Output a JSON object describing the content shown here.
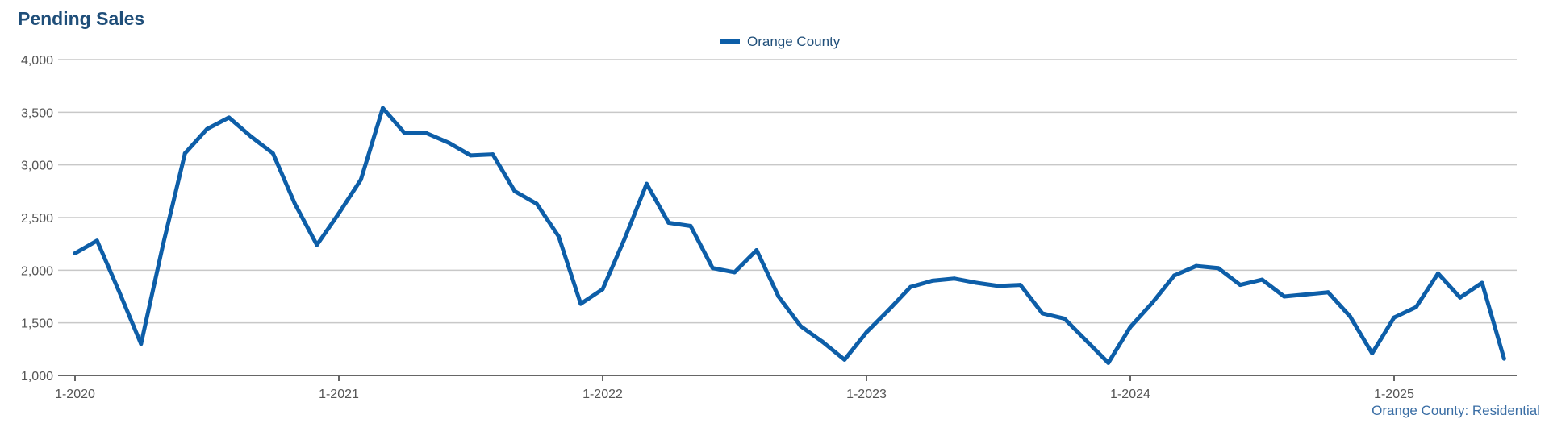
{
  "chart_data": {
    "type": "line",
    "title": "Pending Sales",
    "xlabel": "",
    "ylabel": "",
    "ylim": [
      1000,
      4000
    ],
    "yticks": [
      1000,
      1500,
      2000,
      2500,
      3000,
      3500,
      4000
    ],
    "ytick_labels": [
      "1,000",
      "1,500",
      "2,000",
      "2,500",
      "3,000",
      "3,500",
      "4,000"
    ],
    "xticks": [
      "1-2020",
      "1-2021",
      "1-2022",
      "1-2023",
      "1-2024",
      "1-2025"
    ],
    "grid": true,
    "legend_position": "top-center",
    "x": [
      "2020-01",
      "2020-02",
      "2020-03",
      "2020-04",
      "2020-05",
      "2020-06",
      "2020-07",
      "2020-08",
      "2020-09",
      "2020-10",
      "2020-11",
      "2020-12",
      "2021-01",
      "2021-02",
      "2021-03",
      "2021-04",
      "2021-05",
      "2021-06",
      "2021-07",
      "2021-08",
      "2021-09",
      "2021-10",
      "2021-11",
      "2021-12",
      "2022-01",
      "2022-02",
      "2022-03",
      "2022-04",
      "2022-05",
      "2022-06",
      "2022-07",
      "2022-08",
      "2022-09",
      "2022-10",
      "2022-11",
      "2022-12",
      "2023-01",
      "2023-02",
      "2023-03",
      "2023-04",
      "2023-05",
      "2023-06",
      "2023-07",
      "2023-08",
      "2023-09",
      "2023-10",
      "2023-11",
      "2023-12",
      "2024-01",
      "2024-02",
      "2024-03",
      "2024-04",
      "2024-05",
      "2024-06",
      "2024-07",
      "2024-08",
      "2024-09",
      "2024-10",
      "2024-11",
      "2024-12",
      "2025-01",
      "2025-02",
      "2025-03",
      "2025-04",
      "2025-05",
      "2025-06"
    ],
    "series": [
      {
        "name": "Orange County",
        "color": "#0d5ea8",
        "values": [
          2160,
          2280,
          1800,
          1300,
          2240,
          3110,
          3340,
          3450,
          3270,
          3110,
          2630,
          2240,
          2540,
          2860,
          3540,
          3300,
          3300,
          3210,
          3090,
          3100,
          2750,
          2630,
          2320,
          1680,
          1820,
          2300,
          2820,
          2450,
          2420,
          2020,
          1980,
          2190,
          1750,
          1470,
          1320,
          1150,
          1410,
          1620,
          1840,
          1900,
          1920,
          1880,
          1850,
          1860,
          1590,
          1540,
          1330,
          1120,
          1460,
          1690,
          1950,
          2040,
          2020,
          1860,
          1910,
          1750,
          1770,
          1790,
          1560,
          1210,
          1550,
          1650,
          1970,
          1740,
          1880,
          1160
        ]
      }
    ]
  },
  "footer": {
    "source": "Orange County: Residential"
  }
}
